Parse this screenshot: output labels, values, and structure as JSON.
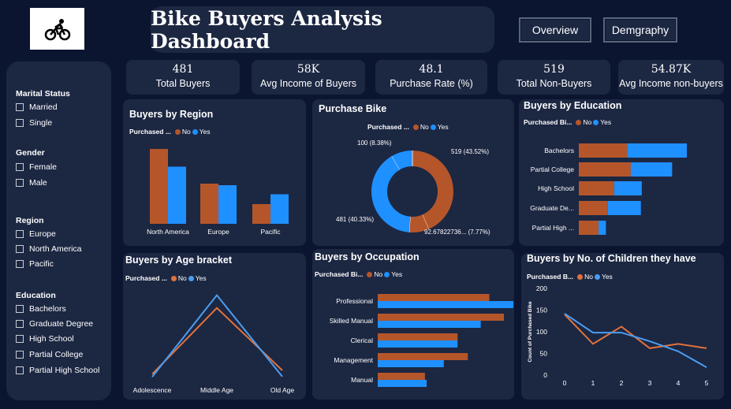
{
  "header": {
    "title": "Bike Buyers Analysis Dashboard",
    "nav": [
      "Overview",
      "Demgraphy"
    ]
  },
  "kpis": [
    {
      "value": "481",
      "label": "Total Buyers"
    },
    {
      "value": "58K",
      "label": "Avg Income of Buyers"
    },
    {
      "value": "48.1",
      "label": "Purchase Rate (%)"
    },
    {
      "value": "519",
      "label": "Total Non-Buyers"
    },
    {
      "value": "54.87K",
      "label": "Avg Income non-buyers"
    }
  ],
  "filters": {
    "marital": {
      "title": "Marital Status",
      "items": [
        "Married",
        "Single"
      ]
    },
    "gender": {
      "title": "Gender",
      "items": [
        "Female",
        "Male"
      ]
    },
    "region": {
      "title": "Region",
      "items": [
        "Europe",
        "North America",
        "Pacific"
      ]
    },
    "education": {
      "title": "Education",
      "items": [
        "Bachelors",
        "Graduate Degree",
        "High School",
        "Partial College",
        "Partial High School"
      ]
    }
  },
  "legend": {
    "short": "Purchased ...",
    "short2": "Purchased Bi...",
    "short3": "Purchased B...",
    "no": "No",
    "yes": "Yes"
  },
  "colors": {
    "no": "#b5562a",
    "yes": "#1e90ff",
    "yes_line": "#4a9df0",
    "no_line": "#e0723c"
  },
  "chart_data": [
    {
      "type": "bar",
      "title": "Buyers by Region",
      "legend_title": "Purchased ...",
      "categories": [
        "North America",
        "Europe",
        "Pacific"
      ],
      "series": [
        {
          "name": "No",
          "values": [
            190,
            102,
            50
          ]
        },
        {
          "name": "Yes",
          "values": [
            145,
            98,
            75
          ]
        }
      ],
      "ylim": [
        0,
        200
      ]
    },
    {
      "type": "pie",
      "title": "Purchase Bike",
      "legend_title": "Purchased ...",
      "slices": [
        {
          "name": "No",
          "value": 519,
          "label": "519 (43.52%)"
        },
        {
          "name": "No",
          "value": 92.68,
          "label": "92.67822736... (7.77%)"
        },
        {
          "name": "Yes",
          "value": 481,
          "label": "481 (40.33%)"
        },
        {
          "name": "Yes",
          "value": 100,
          "label": "100 (8.38%)"
        }
      ]
    },
    {
      "type": "bar",
      "title": "Buyers by Education",
      "legend_title": "Purchased Bi...",
      "orientation": "horizontal",
      "categories": [
        "Bachelors",
        "Partial College",
        "High School",
        "Graduate De...",
        "Partial High ..."
      ],
      "series": [
        {
          "name": "No",
          "values": [
            105,
            113,
            77,
            63,
            43
          ]
        },
        {
          "name": "Yes",
          "values": [
            130,
            90,
            60,
            72,
            16
          ]
        }
      ],
      "stacked": true
    },
    {
      "type": "line",
      "title": "Buyers by Age bracket",
      "legend_title": "Purchased ...",
      "categories": [
        "Adolescence",
        "Middle Age",
        "Old Age"
      ],
      "series": [
        {
          "name": "No",
          "values": [
            12,
            245,
            25
          ]
        },
        {
          "name": "Yes",
          "values": [
            2,
            290,
            3
          ]
        }
      ],
      "ylim": [
        0,
        300
      ]
    },
    {
      "type": "bar",
      "title": "Buyers by Occupation",
      "legend_title": "Purchased Bi...",
      "orientation": "horizontal",
      "categories": [
        "Professional",
        "Skilled Manual",
        "Clerical",
        "Management",
        "Manual"
      ],
      "series": [
        {
          "name": "No",
          "values": [
            130,
            147,
            93,
            105,
            55
          ]
        },
        {
          "name": "Yes",
          "values": [
            158,
            120,
            93,
            77,
            57
          ]
        }
      ]
    },
    {
      "type": "line",
      "title": "Buyers by No. of Children they have",
      "legend_title": "Purchased B...",
      "x": [
        0,
        1,
        2,
        3,
        4,
        5
      ],
      "ylabel": "Count of Purchased Bike",
      "yticks": [
        0,
        50,
        100,
        150,
        200
      ],
      "ylim": [
        0,
        200
      ],
      "series": [
        {
          "name": "No",
          "values": [
            140,
            72,
            112,
            62,
            72,
            62
          ]
        },
        {
          "name": "Yes",
          "values": [
            142,
            98,
            98,
            78,
            55,
            18
          ]
        }
      ]
    }
  ]
}
